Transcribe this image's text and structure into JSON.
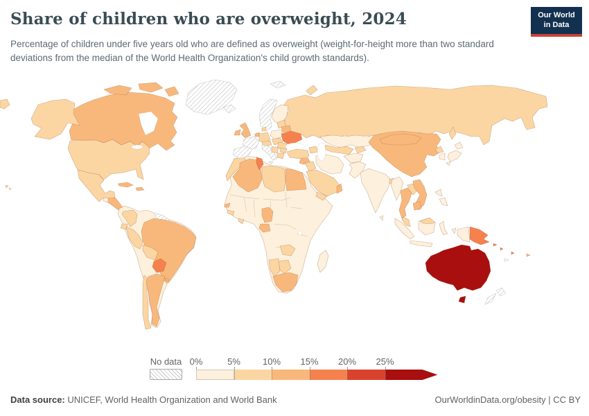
{
  "header": {
    "title": "Share of children who are overweight, 2024",
    "subtitle": "Percentage of children under five years old who are defined as overweight (weight-for-height more than two standard deviations from the median of the World Health Organization's child growth standards).",
    "logo": {
      "line1": "Our World",
      "line2": "in Data",
      "bg_color": "#12304f",
      "accent_color": "#c9423a"
    }
  },
  "chart_data": {
    "type": "choropleth",
    "title": "Share of children who are overweight, 2024",
    "unit": "%",
    "legend": {
      "no_data_label": "No data",
      "tick_labels": [
        "0%",
        "5%",
        "10%",
        "15%",
        "20%",
        "25%"
      ],
      "bins": [
        {
          "range": "0-5%",
          "color": "#fdf0dc"
        },
        {
          "range": "5-10%",
          "color": "#fbd6a3"
        },
        {
          "range": "10-15%",
          "color": "#f9b87b"
        },
        {
          "range": "15-20%",
          "color": "#f5814f"
        },
        {
          "range": "20-25%",
          "color": "#d9432e"
        },
        {
          "range": ">25%",
          "color": "#a80f0e"
        }
      ],
      "no_data_pattern": "diagonal-hatch"
    },
    "regions": {
      "greenland": "no-data",
      "iceland": "no-data",
      "norway-sweden": "no-data",
      "svalbard": "no-data",
      "france": "no-data",
      "iberia": "no-data",
      "italy": "no-data",
      "sicily": "no-data",
      "new-zealand": "no-data",
      "new-caledonia": "no-data",
      "guyana-suriname": "no-data",
      "canada": "10-15%",
      "usa": "5-10%",
      "alaska": "5-10%",
      "hawaii": "5-10%",
      "mexico": "5-10%",
      "guatemala": "0-5%",
      "central-america": "10-15%",
      "cuba": "10-15%",
      "hispaniola": "10-15%",
      "colombia": "5-10%",
      "venezuela": "0-5%",
      "ecuador": "5-10%",
      "peru": "5-10%",
      "bolivia": "5-10%",
      "brazil": "10-15%",
      "paraguay": "15-20%",
      "uruguay": "10-15%",
      "argentina": "10-15%",
      "chile": "5-10%",
      "uk": "10-15%",
      "ireland": "10-15%",
      "finland": "0-5%",
      "denmark": "5-10%",
      "germany": "5-10%",
      "benelux": "10-15%",
      "alpine": "5-10%",
      "poland": "0-5%",
      "czech-hungary": "5-10%",
      "baltics": "5-10%",
      "belarus": "10-15%",
      "ukraine": "15-20%",
      "romania": "5-10%",
      "balkans": "5-10%",
      "bulgaria": "5-10%",
      "greece": "5-10%",
      "russia": "5-10%",
      "kazakhstan": "0-5%",
      "uzbek-turkmen": "5-10%",
      "kyrgyz-tajik": "5-10%",
      "caucasus": "5-10%",
      "turkey": "5-10%",
      "syria-levant": "10-15%",
      "iraq": "5-10%",
      "iran": "0-5%",
      "saudi-arabia": "5-10%",
      "yemen": "5-10%",
      "oman": "10-15%",
      "afghanistan": "0-5%",
      "pakistan": "0-5%",
      "india": "0-5%",
      "sri-lanka": "0-5%",
      "bangladesh": "5-10%",
      "china": "10-15%",
      "mongolia": "10-15%",
      "north-korea": "5-10%",
      "south-korea": "0-5%",
      "japan": "0-5%",
      "myanmar": "0-5%",
      "thailand": "10-15%",
      "laos": "5-10%",
      "vietnam": "10-15%",
      "cambodia": "10-15%",
      "malaysia": "5-10%",
      "malaysia-borneo": "5-10%",
      "indonesia": "0-5%",
      "philippines": "0-5%",
      "papua-indonesia": "0-5%",
      "papua-new-guinea": "15-20%",
      "solomon-islands": "15-20%",
      "vanuatu": "15-20%",
      "fiji": "10-15%",
      "australia": ">25%",
      "morocco": "5-10%",
      "algeria": "10-15%",
      "tunisia": "15-20%",
      "libya": "5-10%",
      "egypt": "10-15%",
      "senegal": "10-15%",
      "guinea": "5-10%",
      "ghana": "5-10%",
      "cameroon": "10-15%",
      "gabon": "10-15%",
      "zambia": "5-10%",
      "namibia": "5-10%",
      "botswana": "5-10%",
      "south-africa": "10-15%",
      "madagascar": "0-5%",
      "africa-other": "0-5%",
      "south-america-other": "0-5%"
    }
  },
  "footer": {
    "source_label": "Data source:",
    "source_text": " UNICEF, World Health Organization and World Bank",
    "right_text": "OurWorldinData.org/obesity | CC BY"
  }
}
